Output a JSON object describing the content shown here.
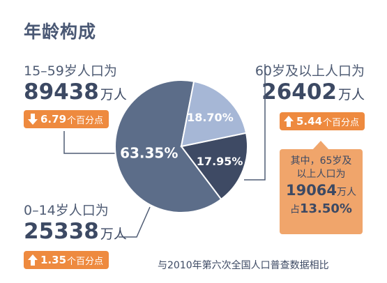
{
  "title": "年龄构成",
  "groups": {
    "working_age": {
      "label": "15–59岁人口为",
      "value": "89438",
      "unit": "万人",
      "change": "6.79",
      "change_unit": "个百分点",
      "direction": "down"
    },
    "elderly": {
      "label": "60岁及以上人口为",
      "value": "26402",
      "unit": "万人",
      "change": "5.44",
      "change_unit": "个百分点",
      "direction": "up"
    },
    "children": {
      "label": "0–14岁人口为",
      "value": "25338",
      "unit": "万人",
      "change": "1.35",
      "change_unit": "个百分点",
      "direction": "up"
    }
  },
  "callout": {
    "line1": "其中，65岁及",
    "line2": "以上人口为",
    "value": "19064",
    "unit": "万人",
    "share_prefix": "占",
    "share": "13.50%"
  },
  "footnote": "与2010年第六次全国人口普查数据相比",
  "colors": {
    "working_age": "#5c6d89",
    "children": "#3e4a64",
    "elderly": "#a6b7d6",
    "accent": "#ee8a3f",
    "callout": "#f0a56b"
  },
  "chart_data": {
    "type": "pie",
    "categories": [
      "15–59岁",
      "0–14岁",
      "60岁及以上"
    ],
    "values": [
      63.35,
      17.95,
      18.7
    ],
    "labels": [
      "63.35%",
      "17.95%",
      "18.70%"
    ]
  }
}
